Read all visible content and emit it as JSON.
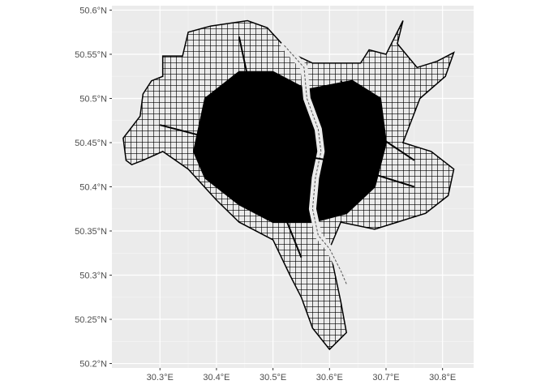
{
  "chart_data": {
    "type": "map",
    "title": "",
    "xlabel": "",
    "ylabel": "",
    "xlim": [
      30.215,
      30.855
    ],
    "ylim": [
      50.195,
      50.605
    ],
    "grid": true,
    "legend": "none",
    "x_ticks": [
      {
        "value": 30.3,
        "label": "30.3°E"
      },
      {
        "value": 30.4,
        "label": "30.4°E"
      },
      {
        "value": 30.5,
        "label": "30.5°E"
      },
      {
        "value": 30.6,
        "label": "30.6°E"
      },
      {
        "value": 30.7,
        "label": "30.7°E"
      },
      {
        "value": 30.8,
        "label": "30.8°E"
      }
    ],
    "y_ticks": [
      {
        "value": 50.2,
        "label": "50.2°N"
      },
      {
        "value": 50.25,
        "label": "50.25°N"
      },
      {
        "value": 50.3,
        "label": "50.3°N"
      },
      {
        "value": 50.35,
        "label": "50.35°N"
      },
      {
        "value": 50.4,
        "label": "50.4°N"
      },
      {
        "value": 50.45,
        "label": "50.45°N"
      },
      {
        "value": 50.5,
        "label": "50.5°N"
      },
      {
        "value": 50.55,
        "label": "50.55°N"
      },
      {
        "value": 50.6,
        "label": "50.6°N"
      }
    ],
    "city_outline": [
      [
        30.24,
        50.43
      ],
      [
        30.235,
        50.455
      ],
      [
        30.265,
        50.48
      ],
      [
        30.27,
        50.505
      ],
      [
        30.285,
        50.52
      ],
      [
        30.305,
        50.525
      ],
      [
        30.305,
        50.548
      ],
      [
        30.34,
        50.548
      ],
      [
        30.35,
        50.575
      ],
      [
        30.39,
        50.582
      ],
      [
        30.455,
        50.588
      ],
      [
        30.49,
        50.58
      ],
      [
        30.53,
        50.552
      ],
      [
        30.57,
        50.54
      ],
      [
        30.62,
        50.54
      ],
      [
        30.655,
        50.54
      ],
      [
        30.67,
        50.555
      ],
      [
        30.7,
        50.55
      ],
      [
        30.73,
        50.588
      ],
      [
        30.72,
        50.562
      ],
      [
        30.755,
        50.535
      ],
      [
        30.79,
        50.542
      ],
      [
        30.82,
        50.552
      ],
      [
        30.805,
        50.525
      ],
      [
        30.76,
        50.5
      ],
      [
        30.73,
        50.45
      ],
      [
        30.78,
        50.44
      ],
      [
        30.82,
        50.42
      ],
      [
        30.81,
        50.39
      ],
      [
        30.77,
        50.37
      ],
      [
        30.72,
        50.36
      ],
      [
        30.68,
        50.352
      ],
      [
        30.62,
        50.36
      ],
      [
        30.6,
        50.33
      ],
      [
        30.61,
        50.3
      ],
      [
        30.62,
        50.27
      ],
      [
        30.63,
        50.235
      ],
      [
        30.6,
        50.216
      ],
      [
        30.57,
        50.24
      ],
      [
        30.55,
        50.275
      ],
      [
        30.53,
        50.3
      ],
      [
        30.5,
        50.34
      ],
      [
        30.44,
        50.36
      ],
      [
        30.4,
        50.385
      ],
      [
        30.35,
        50.42
      ],
      [
        30.305,
        50.44
      ],
      [
        30.27,
        50.43
      ],
      [
        30.25,
        50.425
      ]
    ],
    "dense_core": [
      [
        30.36,
        50.44
      ],
      [
        30.38,
        50.5
      ],
      [
        30.44,
        50.53
      ],
      [
        30.5,
        50.53
      ],
      [
        30.56,
        50.51
      ],
      [
        30.64,
        50.52
      ],
      [
        30.69,
        50.5
      ],
      [
        30.7,
        50.45
      ],
      [
        30.68,
        50.4
      ],
      [
        30.63,
        50.37
      ],
      [
        30.57,
        50.36
      ],
      [
        30.5,
        50.36
      ],
      [
        30.44,
        50.38
      ],
      [
        30.38,
        50.41
      ]
    ],
    "river_dnipro": [
      [
        30.52,
        50.56
      ],
      [
        30.555,
        50.535
      ],
      [
        30.56,
        50.5
      ],
      [
        30.58,
        50.465
      ],
      [
        30.585,
        50.44
      ],
      [
        30.575,
        50.41
      ],
      [
        30.57,
        50.375
      ],
      [
        30.58,
        50.345
      ],
      [
        30.6,
        50.33
      ],
      [
        30.62,
        50.305
      ],
      [
        30.63,
        50.29
      ]
    ],
    "rail_lines": [
      [
        [
          30.3,
          50.47
        ],
        [
          30.45,
          50.445
        ],
        [
          30.6,
          50.43
        ],
        [
          30.75,
          50.4
        ]
      ],
      [
        [
          30.44,
          50.57
        ],
        [
          30.47,
          50.48
        ],
        [
          30.5,
          50.4
        ],
        [
          30.55,
          50.32
        ]
      ],
      [
        [
          30.62,
          50.52
        ],
        [
          30.68,
          50.46
        ],
        [
          30.75,
          50.43
        ]
      ]
    ]
  }
}
